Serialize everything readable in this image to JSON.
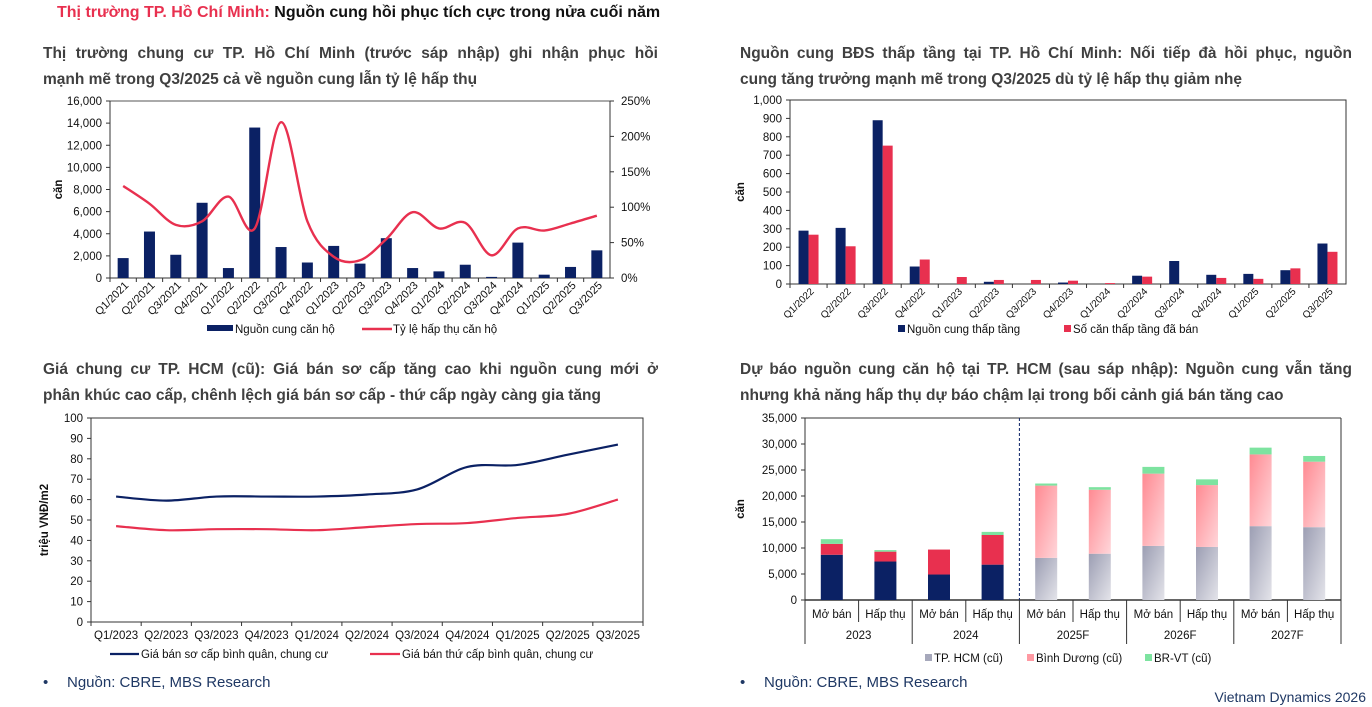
{
  "page": {
    "title_accent": "Thị trường TP. Hồ Chí Minh:",
    "title_rest": " Nguồn cung hồi phục tích cực trong nửa cuối năm",
    "footer": "Vietnam Dynamics 2026",
    "sources": [
      "Nguồn: CBRE, MBS Research",
      "Nguồn: CBRE, MBS Research"
    ]
  },
  "colors": {
    "navy": "#0b2164",
    "red": "#e8304f",
    "grey": "#a6a8bb",
    "pink": "#ff9aa3",
    "green": "#7de3a0"
  },
  "chart_data": [
    {
      "type": "bar",
      "title": "Thị trường chung cư TP. Hồ Chí Minh (trước sáp nhập) ghi nhận phục hồi mạnh mẽ trong Q3/2025 cả về nguồn cung lẫn tỷ lệ hấp thụ",
      "title_lines": [
        "Thị trường chung cư TP. Hồ Chí Minh (trước sáp nhập) ghi nhận phục hồi",
        "mạnh mẽ trong Q3/2025 cả về nguồn cung lẫn tỷ lệ hấp thụ"
      ],
      "ylabel": "căn",
      "ylim": [
        0,
        16000
      ],
      "yticks": [
        "0",
        "2,000",
        "4,000",
        "6,000",
        "8,000",
        "10,000",
        "12,000",
        "14,000",
        "16,000"
      ],
      "y2lim": [
        0,
        250
      ],
      "y2ticks": [
        "0%",
        "50%",
        "100%",
        "150%",
        "200%",
        "250%"
      ],
      "categories": [
        "Q1/2021",
        "Q2/2021",
        "Q3/2021",
        "Q4/2021",
        "Q1/2022",
        "Q2/2022",
        "Q3/2022",
        "Q4/2022",
        "Q1/2023",
        "Q2/2023",
        "Q3/2023",
        "Q4/2023",
        "Q1/2024",
        "Q2/2024",
        "Q3/2024",
        "Q4/2024",
        "Q1/2025",
        "Q2/2025",
        "Q3/2025"
      ],
      "series": [
        {
          "name": "Nguồn cung căn hộ",
          "type": "bar",
          "axis": "left",
          "values": [
            1800,
            4200,
            2100,
            6800,
            900,
            13600,
            2800,
            1400,
            2900,
            1300,
            3600,
            900,
            600,
            1200,
            100,
            3200,
            300,
            1000,
            2500
          ]
        },
        {
          "name": "Tỷ lệ hấp thụ căn hộ",
          "type": "line",
          "axis": "right",
          "values": [
            130,
            105,
            75,
            80,
            115,
            70,
            220,
            80,
            30,
            25,
            55,
            93,
            70,
            78,
            32,
            70,
            67,
            77,
            88
          ]
        }
      ],
      "legend": "bottom"
    },
    {
      "type": "bar",
      "title": "Nguồn cung BĐS thấp tầng tại TP. Hồ Chí Minh: Nối tiếp đà hồi phục, nguồn cung tăng trưởng mạnh mẽ trong Q3/2025 dù tỷ lệ hấp thụ giảm nhẹ",
      "title_lines": [
        "Nguồn cung BĐS thấp tầng tại TP. Hồ Chí Minh: Nối tiếp đà hồi phục, nguồn",
        "cung tăng trưởng mạnh mẽ trong Q3/2025 dù tỷ lệ hấp thụ giảm nhẹ"
      ],
      "ylabel": "căn",
      "ylim": [
        0,
        1000
      ],
      "yticks": [
        "0",
        "100",
        "200",
        "300",
        "400",
        "500",
        "600",
        "700",
        "800",
        "900",
        "1,000"
      ],
      "categories": [
        "Q1/2022",
        "Q2/2022",
        "Q3/2022",
        "Q4/2022",
        "Q1/2023",
        "Q2/2023",
        "Q3/2023",
        "Q4/2023",
        "Q1/2024",
        "Q2/2024",
        "Q3/2024",
        "Q4/2024",
        "Q1/2025",
        "Q2/2025",
        "Q3/2025"
      ],
      "series": [
        {
          "name": "Nguồn cung thấp tầng",
          "values": [
            290,
            305,
            890,
            95,
            0,
            12,
            0,
            8,
            0,
            45,
            125,
            50,
            55,
            75,
            220
          ]
        },
        {
          "name": "Số căn thấp tầng đã bán",
          "values": [
            268,
            205,
            752,
            133,
            38,
            22,
            22,
            18,
            5,
            40,
            0,
            33,
            28,
            85,
            175
          ]
        }
      ],
      "legend": "bottom"
    },
    {
      "type": "line",
      "title": "Giá chung cư TP. HCM (cũ): Giá bán sơ cấp tăng cao khi nguồn cung mới ở phân khúc cao cấp, chênh lệch giá bán sơ cấp - thứ cấp ngày càng gia tăng",
      "title_lines": [
        "Giá chung cư TP. HCM (cũ): Giá bán sơ cấp tăng cao khi nguồn cung mới ở",
        "phân khúc cao cấp, chênh lệch giá bán sơ cấp - thứ cấp ngày càng gia tăng"
      ],
      "ylabel": "triệu VNĐ/m2",
      "ylim": [
        0,
        100
      ],
      "yticks": [
        "0",
        "10",
        "20",
        "30",
        "40",
        "50",
        "60",
        "70",
        "80",
        "90",
        "100"
      ],
      "categories": [
        "Q1/2023",
        "Q2/2023",
        "Q3/2023",
        "Q4/2023",
        "Q1/2024",
        "Q2/2024",
        "Q3/2024",
        "Q4/2024",
        "Q1/2025",
        "Q2/2025",
        "Q3/2025"
      ],
      "series": [
        {
          "name": "Giá bán sơ cấp bình quân, chung cư",
          "values": [
            61.5,
            59.5,
            61.5,
            61.5,
            61.5,
            62.5,
            65,
            76,
            77,
            82,
            87
          ]
        },
        {
          "name": "Giá bán thứ cấp bình quân, chung cư",
          "values": [
            47,
            45,
            45.5,
            45.5,
            45,
            46.5,
            48,
            48.5,
            51,
            53,
            60
          ]
        }
      ],
      "legend": "bottom"
    },
    {
      "type": "bar",
      "stacked": true,
      "title": "Dự báo nguồn cung căn hộ tại TP. HCM (sau sáp nhập): Nguồn cung vẫn tăng nhưng khả năng hấp thụ dự báo chậm lại trong bối cảnh giá bán tăng cao",
      "title_lines": [
        "Dự báo nguồn cung căn hộ tại TP. HCM (sau sáp nhập): Nguồn cung vẫn tăng",
        "nhưng khả năng hấp thụ dự báo chậm lại trong bối cảnh giá bán tăng cao"
      ],
      "ylabel": "căn",
      "ylim": [
        0,
        35000
      ],
      "yticks": [
        "0",
        "5,000",
        "10,000",
        "15,000",
        "20,000",
        "25,000",
        "30,000",
        "35,000"
      ],
      "groups": [
        "2023",
        "2024",
        "2025F",
        "2026F",
        "2027F"
      ],
      "categories": [
        "Mở bán",
        "Hấp thụ",
        "Mở bán",
        "Hấp thụ",
        "Mở bán",
        "Hấp thụ",
        "Mở bán",
        "Hấp thụ",
        "Mở bán",
        "Hấp thụ"
      ],
      "forecast_divider_after_group": "2024",
      "series": [
        {
          "name": "TP. HCM (cũ)",
          "values": [
            8700,
            7400,
            4900,
            6800,
            8100,
            8900,
            10400,
            10200,
            14200,
            14000
          ]
        },
        {
          "name": "Bình Dương (cũ)",
          "values": [
            2100,
            1900,
            4800,
            5700,
            13900,
            12300,
            13900,
            11900,
            13800,
            12600
          ]
        },
        {
          "name": "BR-VT (cũ)",
          "values": [
            900,
            300,
            0,
            600,
            400,
            500,
            1300,
            1100,
            1300,
            1100
          ]
        }
      ],
      "legend": "bottom"
    }
  ]
}
